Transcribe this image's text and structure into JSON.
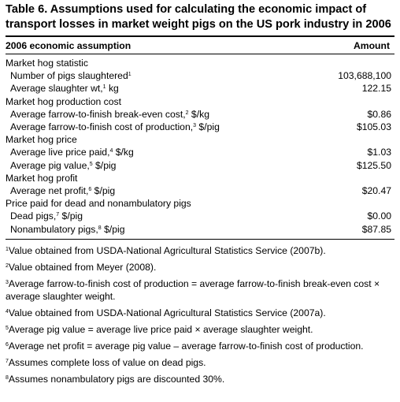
{
  "title_line1": "Table 6. Assumptions used for calculating the economic impact of",
  "title_line2": "transport losses in market weight pigs on the US pork industry in 2006",
  "header": {
    "col1": "2006 economic assumption",
    "col2": "Amount"
  },
  "rows": [
    {
      "type": "cat",
      "label": "Market hog statistic",
      "sup": "",
      "suffix": "",
      "value": ""
    },
    {
      "type": "item",
      "label": "Number of pigs slaughtered",
      "sup": "1",
      "suffix": "",
      "value": "103,688,100"
    },
    {
      "type": "item",
      "label": "Average slaughter wt,",
      "sup": "1",
      "suffix": " kg",
      "value": "122.15"
    },
    {
      "type": "cat",
      "label": "Market hog production cost",
      "sup": "",
      "suffix": "",
      "value": ""
    },
    {
      "type": "item",
      "label": "Average farrow-to-finish break-even cost,",
      "sup": "2",
      "suffix": " $/kg",
      "value": "$0.86"
    },
    {
      "type": "item",
      "label": "Average farrow-to-finish cost of production,",
      "sup": "3",
      "suffix": " $/pig",
      "value": "$105.03"
    },
    {
      "type": "cat",
      "label": "Market hog price",
      "sup": "",
      "suffix": "",
      "value": ""
    },
    {
      "type": "item",
      "label": "Average live price paid,",
      "sup": "4",
      "suffix": " $/kg",
      "value": "$1.03"
    },
    {
      "type": "item",
      "label": "Average pig value,",
      "sup": "5",
      "suffix": " $/pig",
      "value": "$125.50"
    },
    {
      "type": "cat",
      "label": "Market hog profit",
      "sup": "",
      "suffix": "",
      "value": ""
    },
    {
      "type": "item",
      "label": "Average net profit,",
      "sup": "6",
      "suffix": " $/pig",
      "value": "$20.47"
    },
    {
      "type": "cat",
      "label": "Price paid for dead and nonambulatory pigs",
      "sup": "",
      "suffix": "",
      "value": ""
    },
    {
      "type": "item",
      "label": "Dead pigs,",
      "sup": "7",
      "suffix": " $/pig",
      "value": "$0.00"
    },
    {
      "type": "item",
      "label": "Nonambulatory pigs,",
      "sup": "8",
      "suffix": " $/pig",
      "value": "$87.85"
    }
  ],
  "notes": [
    {
      "sup": "1",
      "text": "Value obtained from USDA-National Agricultural Statistics Service (2007b)."
    },
    {
      "sup": "2",
      "text": "Value obtained from Meyer (2008)."
    },
    {
      "sup": "3",
      "text": "Average farrow-to-finish cost of production = average farrow-to-finish break-even cost × average slaughter weight."
    },
    {
      "sup": "4",
      "text": "Value obtained from USDA-National Agricultural Statistics Service (2007a)."
    },
    {
      "sup": "5",
      "text": "Average pig value = average live price paid × average slaughter weight."
    },
    {
      "sup": "6",
      "text": "Average net profit = average pig value – average farrow-to-finish cost of production."
    },
    {
      "sup": "7",
      "text": "Assumes complete loss of value on dead pigs."
    },
    {
      "sup": "8",
      "text": "Assumes nonambulatory pigs are discounted 30%."
    }
  ]
}
